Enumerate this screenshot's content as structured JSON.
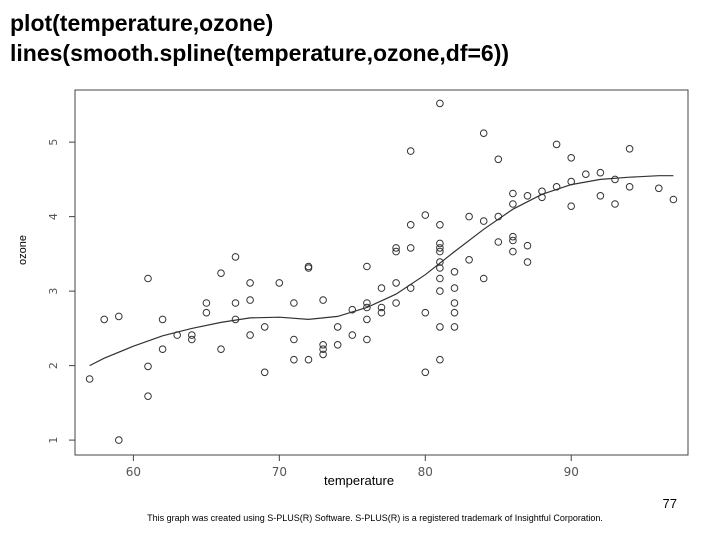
{
  "title_lines": [
    "plot(temperature,ozone)",
    "lines(smooth.spline(temperature,ozone,df=6))"
  ],
  "footnote": "This graph was created using S-PLUS(R) Software. S-PLUS(R) is a registered trademark of Insightful Corporation.",
  "page_number": "77",
  "chart_data": {
    "type": "scatter",
    "xlabel": "temperature",
    "ylabel": "ozone",
    "xlim": [
      56,
      98
    ],
    "ylim": [
      0.8,
      5.7
    ],
    "x_ticks": [
      60,
      70,
      80,
      90
    ],
    "y_ticks": [
      1,
      2,
      3,
      4,
      5
    ],
    "grid": false,
    "points": [
      [
        57,
        1.82
      ],
      [
        58,
        2.62
      ],
      [
        59,
        2.66
      ],
      [
        59,
        1.0
      ],
      [
        61,
        3.17
      ],
      [
        61,
        1.99
      ],
      [
        61,
        1.59
      ],
      [
        62,
        2.62
      ],
      [
        62,
        2.22
      ],
      [
        63,
        2.41
      ],
      [
        64,
        2.41
      ],
      [
        64,
        2.35
      ],
      [
        65,
        2.84
      ],
      [
        65,
        2.71
      ],
      [
        66,
        3.24
      ],
      [
        66,
        2.22
      ],
      [
        67,
        3.46
      ],
      [
        67,
        2.84
      ],
      [
        67,
        2.62
      ],
      [
        68,
        3.11
      ],
      [
        68,
        2.88
      ],
      [
        68,
        2.41
      ],
      [
        69,
        2.52
      ],
      [
        69,
        1.91
      ],
      [
        70,
        3.11
      ],
      [
        71,
        2.84
      ],
      [
        71,
        2.35
      ],
      [
        71,
        2.08
      ],
      [
        72,
        3.33
      ],
      [
        72,
        3.31
      ],
      [
        72,
        2.08
      ],
      [
        73,
        2.88
      ],
      [
        73,
        2.28
      ],
      [
        73,
        2.22
      ],
      [
        73,
        2.15
      ],
      [
        74,
        2.52
      ],
      [
        74,
        2.28
      ],
      [
        75,
        2.75
      ],
      [
        75,
        2.41
      ],
      [
        76,
        3.33
      ],
      [
        76,
        2.84
      ],
      [
        76,
        2.78
      ],
      [
        76,
        2.62
      ],
      [
        76,
        2.35
      ],
      [
        77,
        3.04
      ],
      [
        77,
        2.78
      ],
      [
        77,
        2.71
      ],
      [
        78,
        3.58
      ],
      [
        78,
        3.53
      ],
      [
        78,
        3.11
      ],
      [
        78,
        2.84
      ],
      [
        79,
        4.88
      ],
      [
        79,
        3.89
      ],
      [
        79,
        3.58
      ],
      [
        79,
        3.04
      ],
      [
        80,
        4.02
      ],
      [
        80,
        2.71
      ],
      [
        80,
        1.91
      ],
      [
        81,
        5.52
      ],
      [
        81,
        3.89
      ],
      [
        81,
        3.64
      ],
      [
        81,
        3.58
      ],
      [
        81,
        3.53
      ],
      [
        81,
        3.39
      ],
      [
        81,
        3.31
      ],
      [
        81,
        3.17
      ],
      [
        81,
        3.0
      ],
      [
        81,
        2.52
      ],
      [
        81,
        2.08
      ],
      [
        82,
        3.26
      ],
      [
        82,
        3.04
      ],
      [
        82,
        2.84
      ],
      [
        82,
        2.71
      ],
      [
        82,
        2.52
      ],
      [
        83,
        4.0
      ],
      [
        83,
        3.42
      ],
      [
        84,
        5.12
      ],
      [
        84,
        3.94
      ],
      [
        84,
        3.17
      ],
      [
        85,
        4.77
      ],
      [
        85,
        4.0
      ],
      [
        85,
        3.66
      ],
      [
        86,
        4.31
      ],
      [
        86,
        4.17
      ],
      [
        86,
        3.73
      ],
      [
        86,
        3.68
      ],
      [
        86,
        3.53
      ],
      [
        87,
        4.28
      ],
      [
        87,
        3.61
      ],
      [
        87,
        3.39
      ],
      [
        88,
        4.34
      ],
      [
        88,
        4.26
      ],
      [
        89,
        4.97
      ],
      [
        89,
        4.4
      ],
      [
        90,
        4.79
      ],
      [
        90,
        4.47
      ],
      [
        90,
        4.14
      ],
      [
        91,
        4.57
      ],
      [
        92,
        4.59
      ],
      [
        92,
        4.28
      ],
      [
        93,
        4.5
      ],
      [
        93,
        4.17
      ],
      [
        94,
        4.91
      ],
      [
        94,
        4.4
      ],
      [
        96,
        4.38
      ],
      [
        97,
        4.23
      ]
    ],
    "smooth_spline_df": 6,
    "smooth_curve": [
      [
        57,
        2.0
      ],
      [
        58,
        2.1
      ],
      [
        60,
        2.26
      ],
      [
        62,
        2.4
      ],
      [
        64,
        2.5
      ],
      [
        66,
        2.58
      ],
      [
        68,
        2.64
      ],
      [
        70,
        2.65
      ],
      [
        72,
        2.62
      ],
      [
        74,
        2.66
      ],
      [
        76,
        2.78
      ],
      [
        78,
        2.96
      ],
      [
        80,
        3.22
      ],
      [
        82,
        3.53
      ],
      [
        84,
        3.83
      ],
      [
        86,
        4.1
      ],
      [
        88,
        4.3
      ],
      [
        90,
        4.43
      ],
      [
        92,
        4.5
      ],
      [
        94,
        4.53
      ],
      [
        96,
        4.55
      ],
      [
        97,
        4.55
      ]
    ]
  }
}
